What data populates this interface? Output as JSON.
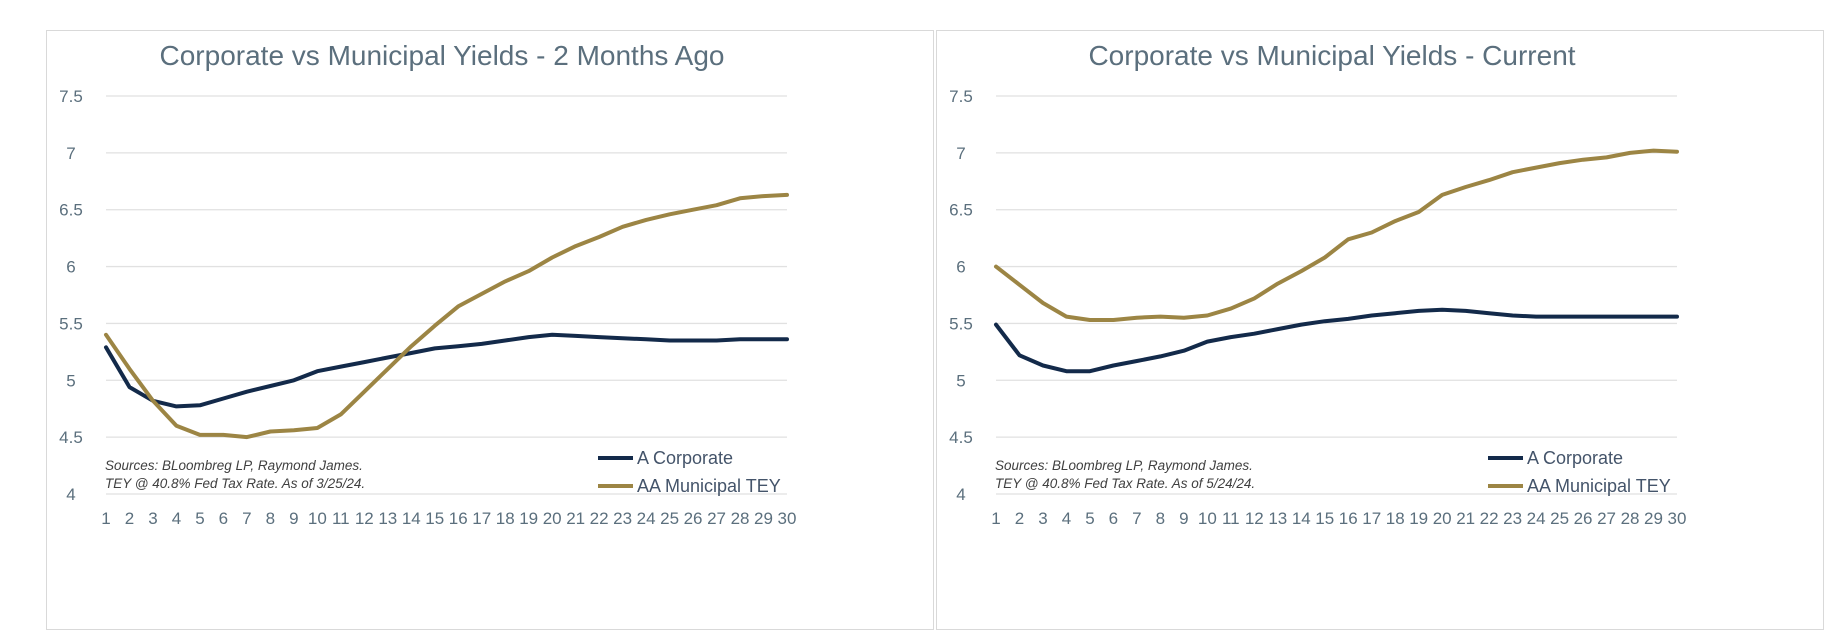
{
  "chart_data": [
    {
      "type": "line",
      "title": "Corporate vs Municipal Yields - 2 Months Ago",
      "x": [
        1,
        2,
        3,
        4,
        5,
        6,
        7,
        8,
        9,
        10,
        11,
        12,
        13,
        14,
        15,
        16,
        17,
        18,
        19,
        20,
        21,
        22,
        23,
        24,
        25,
        26,
        27,
        28,
        29,
        30
      ],
      "ylim": [
        4,
        7.5
      ],
      "yticks": [
        "4",
        "4.5",
        "5",
        "5.5",
        "6",
        "6.5",
        "7",
        "7.5"
      ],
      "grid": true,
      "legend_position": "bottom-right",
      "series": [
        {
          "name": "A Corporate",
          "color": "#132a4a",
          "values": [
            5.29,
            4.94,
            4.82,
            4.77,
            4.78,
            4.84,
            4.9,
            4.95,
            5.0,
            5.08,
            5.12,
            5.16,
            5.2,
            5.24,
            5.28,
            5.3,
            5.32,
            5.35,
            5.38,
            5.4,
            5.39,
            5.38,
            5.37,
            5.36,
            5.35,
            5.35,
            5.35,
            5.36,
            5.36,
            5.36
          ]
        },
        {
          "name": "AA Municipal TEY",
          "color": "#9c8544",
          "values": [
            5.4,
            5.1,
            4.82,
            4.6,
            4.52,
            4.52,
            4.5,
            4.55,
            4.56,
            4.58,
            4.7,
            4.9,
            5.1,
            5.3,
            5.48,
            5.65,
            5.76,
            5.87,
            5.96,
            6.08,
            6.18,
            6.26,
            6.35,
            6.41,
            6.46,
            6.5,
            6.54,
            6.6,
            6.62,
            6.63
          ]
        }
      ],
      "source_lines": [
        "Sources: BLoombreg LP, Raymond James.",
        "TEY @ 40.8% Fed Tax Rate. As of 3/25/24."
      ]
    },
    {
      "type": "line",
      "title": "Corporate vs Municipal Yields - Current",
      "x": [
        1,
        2,
        3,
        4,
        5,
        6,
        7,
        8,
        9,
        10,
        11,
        12,
        13,
        14,
        15,
        16,
        17,
        18,
        19,
        20,
        21,
        22,
        23,
        24,
        25,
        26,
        27,
        28,
        29,
        30
      ],
      "ylim": [
        4,
        7.5
      ],
      "yticks": [
        "4",
        "4.5",
        "5",
        "5.5",
        "6",
        "6.5",
        "7",
        "7.5"
      ],
      "grid": true,
      "legend_position": "bottom-right",
      "series": [
        {
          "name": "A Corporate",
          "color": "#132a4a",
          "values": [
            5.49,
            5.22,
            5.13,
            5.08,
            5.08,
            5.13,
            5.17,
            5.21,
            5.26,
            5.34,
            5.38,
            5.41,
            5.45,
            5.49,
            5.52,
            5.54,
            5.57,
            5.59,
            5.61,
            5.62,
            5.61,
            5.59,
            5.57,
            5.56,
            5.56,
            5.56,
            5.56,
            5.56,
            5.56,
            5.56
          ]
        },
        {
          "name": "AA Municipal TEY",
          "color": "#9c8544",
          "values": [
            6.0,
            5.84,
            5.68,
            5.56,
            5.53,
            5.53,
            5.55,
            5.56,
            5.55,
            5.57,
            5.63,
            5.72,
            5.85,
            5.96,
            6.08,
            6.24,
            6.3,
            6.4,
            6.48,
            6.63,
            6.7,
            6.76,
            6.83,
            6.87,
            6.91,
            6.94,
            6.96,
            7.0,
            7.02,
            7.01
          ]
        }
      ],
      "source_lines": [
        "Sources: BLoombreg LP, Raymond James.",
        "TEY @ 40.8% Fed Tax Rate. As of 5/24/24."
      ]
    }
  ]
}
